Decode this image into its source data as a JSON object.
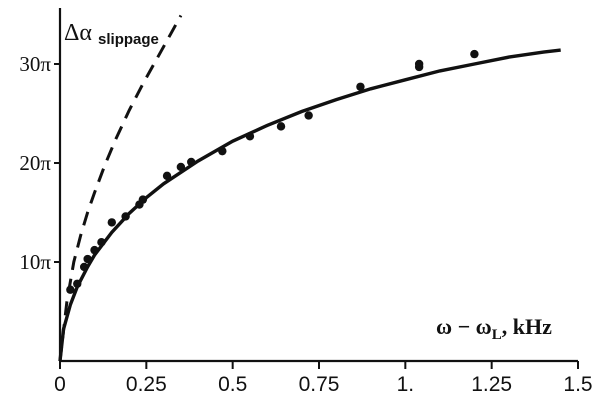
{
  "chart_data": {
    "type": "scatter",
    "title": "",
    "ylabel": {
      "main": "Δα",
      "sub": "slippage"
    },
    "xlabel": {
      "main": "ω − ω",
      "sub": "L",
      "suffix": ", kHz"
    },
    "xlim": [
      0,
      1.5
    ],
    "ylim": [
      0,
      35
    ],
    "x_ticks": [
      {
        "value": 0,
        "label": "0"
      },
      {
        "value": 0.25,
        "label": "0.25"
      },
      {
        "value": 0.5,
        "label": "0.5"
      },
      {
        "value": 0.75,
        "label": "0.75"
      },
      {
        "value": 1.0,
        "label": "1."
      },
      {
        "value": 1.25,
        "label": "1.25"
      },
      {
        "value": 1.5,
        "label": "1.5"
      }
    ],
    "y_ticks": [
      {
        "value": 10,
        "label": "10π"
      },
      {
        "value": 20,
        "label": "20π"
      },
      {
        "value": 30,
        "label": "30π"
      }
    ],
    "grid": false,
    "series": [
      {
        "style": "points",
        "color": "#111111",
        "x": [
          0.03,
          0.05,
          0.07,
          0.08,
          0.1,
          0.12,
          0.15,
          0.19,
          0.23,
          0.24,
          0.31,
          0.35,
          0.38,
          0.47,
          0.55,
          0.64,
          0.72,
          0.87,
          1.04,
          1.04,
          1.2
        ],
        "y": [
          7.2,
          7.8,
          9.5,
          10.3,
          11.2,
          12.0,
          14.0,
          14.6,
          15.8,
          16.3,
          18.7,
          19.6,
          20.1,
          21.2,
          22.7,
          23.7,
          24.8,
          27.7,
          29.7,
          30.0,
          31.0
        ]
      },
      {
        "style": "solid",
        "color": "#111111",
        "x": [
          0.0,
          0.01,
          0.03,
          0.05,
          0.08,
          0.1,
          0.15,
          0.2,
          0.25,
          0.3,
          0.4,
          0.5,
          0.6,
          0.7,
          0.8,
          0.9,
          1.0,
          1.1,
          1.2,
          1.3,
          1.4,
          1.45
        ],
        "y": [
          0.0,
          3.2,
          5.7,
          7.5,
          9.5,
          10.7,
          13.0,
          14.9,
          16.5,
          17.9,
          20.2,
          22.2,
          23.8,
          25.2,
          26.4,
          27.5,
          28.4,
          29.3,
          30.0,
          30.7,
          31.2,
          31.4
        ]
      },
      {
        "style": "dashed",
        "color": "#111111",
        "x": [
          0.0,
          0.02,
          0.04,
          0.06,
          0.08,
          0.1,
          0.13,
          0.16,
          0.2,
          0.24,
          0.28,
          0.32,
          0.35
        ],
        "y": [
          0.0,
          6.0,
          10.0,
          12.7,
          15.0,
          17.0,
          19.8,
          22.3,
          25.3,
          28.0,
          30.5,
          33.0,
          34.9
        ]
      }
    ]
  }
}
